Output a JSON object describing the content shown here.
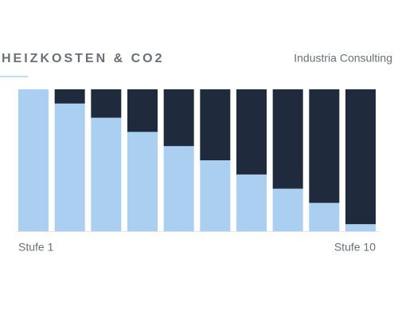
{
  "chart_data": {
    "type": "stacked-bar",
    "title": "HEIZKOSTEN & CO2",
    "subtitle": "Industria Consulting",
    "categories": [
      "Stufe 1",
      null,
      null,
      null,
      null,
      null,
      null,
      null,
      null,
      "Stufe 10"
    ],
    "series": [
      {
        "color": "#abcff0",
        "values": [
          100,
          90,
          80,
          70,
          60,
          50,
          40,
          30,
          20,
          5
        ]
      },
      {
        "color": "#1f2a3c",
        "values": [
          0,
          10,
          20,
          30,
          40,
          50,
          60,
          70,
          80,
          95
        ]
      }
    ],
    "ylim": [
      0,
      100
    ]
  }
}
